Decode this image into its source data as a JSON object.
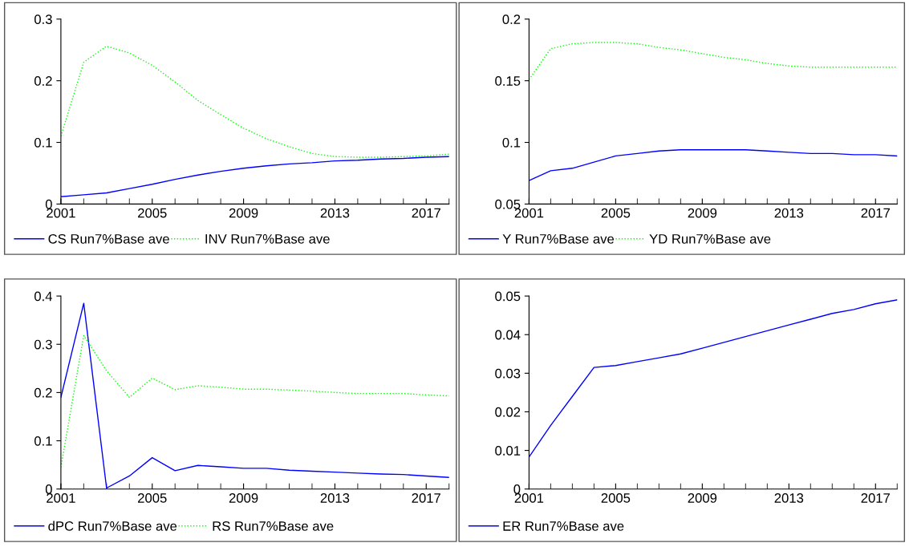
{
  "chart_data": [
    {
      "type": "line",
      "x": [
        2001,
        2002,
        2003,
        2004,
        2005,
        2006,
        2007,
        2008,
        2009,
        2010,
        2011,
        2012,
        2013,
        2014,
        2015,
        2016,
        2017,
        2018
      ],
      "xlim": [
        2001,
        2018
      ],
      "xticks": [
        2001,
        2005,
        2009,
        2013,
        2017
      ],
      "ylim": [
        0,
        0.3
      ],
      "yticks": [
        0,
        0.1,
        0.2,
        0.3
      ],
      "grid": false,
      "legend": "bottom left",
      "series": [
        {
          "name": "CS Run7%Base ave",
          "color": "#0000ff",
          "line_style": "solid",
          "values": [
            0.012,
            0.015,
            0.018,
            0.025,
            0.032,
            0.04,
            0.047,
            0.053,
            0.058,
            0.062,
            0.065,
            0.067,
            0.07,
            0.071,
            0.073,
            0.074,
            0.076,
            0.077
          ]
        },
        {
          "name": "INV Run7%Base ave",
          "color": "#00ff00",
          "line_style": "dotted",
          "values": [
            0.11,
            0.23,
            0.256,
            0.245,
            0.225,
            0.198,
            0.168,
            0.145,
            0.123,
            0.106,
            0.093,
            0.082,
            0.077,
            0.076,
            0.076,
            0.077,
            0.078,
            0.081
          ]
        }
      ]
    },
    {
      "type": "line",
      "x": [
        2001,
        2002,
        2003,
        2004,
        2005,
        2006,
        2007,
        2008,
        2009,
        2010,
        2011,
        2012,
        2013,
        2014,
        2015,
        2016,
        2017,
        2018
      ],
      "xlim": [
        2001,
        2018
      ],
      "xticks": [
        2001,
        2005,
        2009,
        2013,
        2017
      ],
      "ylim": [
        0.05,
        0.2
      ],
      "yticks": [
        0.05,
        0.1,
        0.15,
        0.2
      ],
      "grid": false,
      "legend": "bottom left",
      "series": [
        {
          "name": "Y Run7%Base ave",
          "color": "#0000ff",
          "line_style": "solid",
          "values": [
            0.069,
            0.077,
            0.079,
            0.084,
            0.089,
            0.091,
            0.093,
            0.094,
            0.094,
            0.094,
            0.094,
            0.093,
            0.092,
            0.091,
            0.091,
            0.09,
            0.09,
            0.089
          ]
        },
        {
          "name": "YD Run7%Base ave",
          "color": "#00ff00",
          "line_style": "dotted",
          "values": [
            0.151,
            0.176,
            0.18,
            0.181,
            0.181,
            0.18,
            0.177,
            0.175,
            0.172,
            0.169,
            0.167,
            0.164,
            0.162,
            0.161,
            0.161,
            0.161,
            0.161,
            0.161
          ]
        }
      ]
    },
    {
      "type": "line",
      "x": [
        2001,
        2002,
        2003,
        2004,
        2005,
        2006,
        2007,
        2008,
        2009,
        2010,
        2011,
        2012,
        2013,
        2014,
        2015,
        2016,
        2017,
        2018
      ],
      "xlim": [
        2001,
        2018
      ],
      "xticks": [
        2001,
        2005,
        2009,
        2013,
        2017
      ],
      "ylim": [
        0,
        0.4
      ],
      "yticks": [
        0,
        0.1,
        0.2,
        0.3,
        0.4
      ],
      "grid": false,
      "legend": "bottom left",
      "series": [
        {
          "name": "dPC Run7%Base ave",
          "color": "#0000ff",
          "line_style": "solid",
          "values": [
            0.19,
            0.385,
            0.002,
            0.027,
            0.065,
            0.038,
            0.049,
            0.046,
            0.043,
            0.043,
            0.039,
            0.037,
            0.035,
            0.033,
            0.031,
            0.03,
            0.027,
            0.024
          ]
        },
        {
          "name": "RS Run7%Base ave",
          "color": "#00ff00",
          "line_style": "dotted",
          "values": [
            0.045,
            0.318,
            0.245,
            0.19,
            0.23,
            0.206,
            0.214,
            0.211,
            0.207,
            0.207,
            0.205,
            0.203,
            0.2,
            0.198,
            0.198,
            0.198,
            0.195,
            0.193
          ]
        }
      ]
    },
    {
      "type": "line",
      "x": [
        2001,
        2002,
        2003,
        2004,
        2005,
        2006,
        2007,
        2008,
        2009,
        2010,
        2011,
        2012,
        2013,
        2014,
        2015,
        2016,
        2017,
        2018
      ],
      "xlim": [
        2001,
        2018
      ],
      "xticks": [
        2001,
        2005,
        2009,
        2013,
        2017
      ],
      "ylim": [
        0,
        0.05
      ],
      "yticks": [
        0,
        0.01,
        0.02,
        0.03,
        0.04,
        0.05
      ],
      "grid": false,
      "legend": "bottom left",
      "series": [
        {
          "name": "ER Run7%Base ave",
          "color": "#0000ff",
          "line_style": "solid",
          "values": [
            0.0083,
            0.0165,
            0.024,
            0.0315,
            0.032,
            0.033,
            0.034,
            0.035,
            0.0365,
            0.038,
            0.0395,
            0.041,
            0.0425,
            0.044,
            0.0455,
            0.0465,
            0.048,
            0.049
          ]
        }
      ]
    }
  ]
}
